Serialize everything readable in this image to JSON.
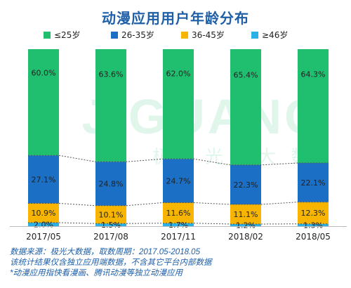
{
  "chart_data": {
    "type": "bar",
    "stacked": true,
    "title": "动漫应用用户年龄分布",
    "categories": [
      "2017/05",
      "2017/08",
      "2017/11",
      "2018/02",
      "2018/05"
    ],
    "series": [
      {
        "name": "≥46岁",
        "color": "#2bb1e5",
        "values": [
          2.0,
          1.5,
          1.7,
          1.2,
          1.3
        ],
        "labels": [
          "2.0%",
          "1.5%",
          "1.7%",
          "1.2%",
          "1.3%"
        ]
      },
      {
        "name": "36-45岁",
        "color": "#f7b500",
        "values": [
          10.9,
          10.1,
          11.6,
          11.1,
          12.3
        ],
        "labels": [
          "10.9%",
          "10.1%",
          "11.6%",
          "11.1%",
          "12.3%"
        ]
      },
      {
        "name": "26-35岁",
        "color": "#1b6fc5",
        "values": [
          27.1,
          24.8,
          24.7,
          22.3,
          22.1
        ],
        "labels": [
          "27.1%",
          "24.8%",
          "24.7%",
          "22.3%",
          "22.1%"
        ]
      },
      {
        "name": "≤25岁",
        "color": "#1fbf6f",
        "values": [
          60.0,
          63.6,
          62.0,
          65.4,
          64.3
        ],
        "labels": [
          "60.0%",
          "63.6%",
          "62.0%",
          "65.4%",
          "64.3%"
        ]
      }
    ],
    "legend": {
      "placement": "top",
      "order": [
        "≤25岁",
        "26-35岁",
        "36-45岁",
        "≥46岁"
      ]
    },
    "ylim": [
      0,
      100
    ],
    "grid": false,
    "watermark": {
      "latin": "JIGUANG",
      "chinese": "极光大数据"
    }
  },
  "notes": [
    "数据来源：极光大数据，取数周期：2017.05-2018.05",
    "该统计结果仅含独立应用端数据，不含其它平台内部数据",
    "*动漫应用指快看漫画、腾讯动漫等独立动漫应用"
  ]
}
